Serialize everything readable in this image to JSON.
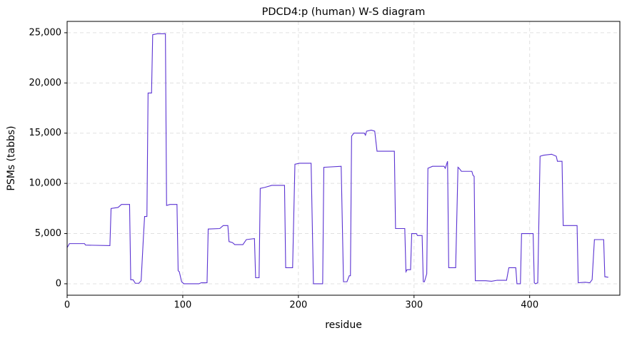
{
  "chart_data": {
    "type": "line",
    "title": "PDCD4:p (human) W-S diagram",
    "x_label": "residue",
    "y_label": "PSMs (tabbs)",
    "color": "#5a32d2",
    "grid": true,
    "xlim": [
      0,
      478
    ],
    "ylim": [
      -1140,
      26130
    ],
    "xticks": [
      0,
      100,
      200,
      300,
      400
    ],
    "yticks": [
      0,
      {
        "value": 5000,
        "label": "5,000"
      },
      {
        "value": 10000,
        "label": "10,000"
      },
      {
        "value": 15000,
        "label": "15,000"
      },
      {
        "value": 20000,
        "label": "20,000"
      },
      {
        "value": 25000,
        "label": "25,000"
      }
    ],
    "x": [
      0,
      2,
      15,
      16,
      37,
      38,
      44,
      47,
      54,
      55,
      57,
      59,
      62,
      64,
      66,
      67,
      69,
      70,
      73,
      74,
      78,
      85,
      86,
      89,
      95,
      96,
      97,
      99,
      101,
      114,
      116,
      121,
      122,
      132,
      135,
      139,
      140,
      143,
      145,
      152,
      155,
      162,
      163,
      166,
      167,
      171,
      177,
      188,
      189,
      195,
      197,
      201,
      211,
      213,
      221,
      222,
      237,
      239,
      242,
      244,
      245,
      246,
      248,
      257,
      258,
      259,
      263,
      266,
      268,
      283,
      284,
      292,
      293,
      294,
      297,
      298,
      302,
      303,
      307,
      308,
      309,
      311,
      312,
      316,
      326,
      327,
      329,
      330,
      336,
      338,
      339,
      341,
      350,
      351,
      352,
      353,
      362,
      367,
      372,
      380,
      382,
      388,
      389,
      392,
      393,
      403,
      404,
      405,
      407,
      409,
      412,
      419,
      423,
      424,
      428,
      429,
      441,
      442,
      448,
      452,
      454,
      456,
      464,
      465,
      468
    ],
    "values": [
      3600,
      4000,
      4000,
      3850,
      3800,
      7500,
      7600,
      7900,
      7900,
      400,
      400,
      50,
      50,
      300,
      4700,
      6700,
      6700,
      19000,
      19000,
      24800,
      24900,
      24900,
      7800,
      7900,
      7900,
      1300,
      1200,
      200,
      0,
      0,
      100,
      100,
      5450,
      5500,
      5800,
      5800,
      4200,
      4100,
      3900,
      3900,
      4400,
      4500,
      600,
      600,
      9500,
      9600,
      9800,
      9800,
      1600,
      1600,
      11900,
      12000,
      12000,
      0,
      0,
      11600,
      11700,
      200,
      200,
      800,
      800,
      14700,
      15000,
      15000,
      14800,
      15200,
      15300,
      15200,
      13200,
      13200,
      5500,
      5500,
      1200,
      1400,
      1400,
      5000,
      5000,
      4800,
      4800,
      200,
      200,
      1000,
      11500,
      11700,
      11700,
      11500,
      12200,
      1600,
      1600,
      11600,
      11500,
      11200,
      11200,
      10800,
      10700,
      300,
      300,
      250,
      350,
      350,
      1600,
      1600,
      0,
      0,
      5000,
      5000,
      100,
      0,
      100,
      12700,
      12800,
      12900,
      12700,
      12200,
      12200,
      5800,
      5800,
      100,
      150,
      100,
      400,
      4400,
      4400,
      700,
      650
    ]
  }
}
